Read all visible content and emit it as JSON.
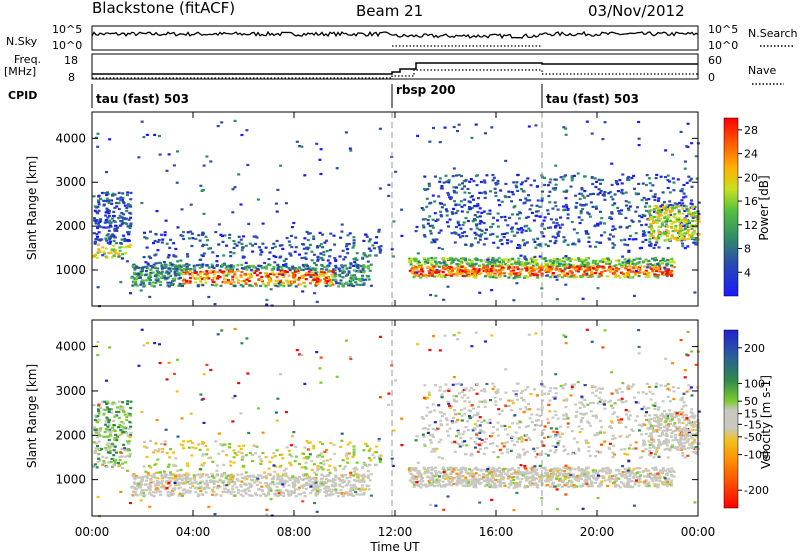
{
  "header": {
    "radar": "Blackstone (fitACF)",
    "beam": "Beam 21",
    "date": "03/Nov/2012"
  },
  "strips": {
    "noise": {
      "left_label": "N.Sky",
      "right_label": "N.Search",
      "ticks": [
        "10^5",
        "10^0"
      ]
    },
    "freq": {
      "left_label": "Freq.",
      "left_unit": "[MHz]",
      "left_ticks": [
        "18",
        "8"
      ],
      "right_label": "Nave",
      "right_ticks": [
        "60",
        "0"
      ]
    },
    "cpid": {
      "label": "CPID",
      "programs": [
        "tau (fast) 503",
        "rbsp 200",
        "tau (fast) 503"
      ],
      "switch_times_hours": [
        0,
        12,
        18
      ]
    }
  },
  "chart_data": [
    {
      "type": "heatmap",
      "name": "power",
      "xlabel": "Time UT",
      "ylabel": "Slant Range [km]",
      "x_ticks": [
        "00:00",
        "04:00",
        "08:00",
        "12:00",
        "16:00",
        "20:00",
        "00:00"
      ],
      "xlim_hours": [
        0,
        24
      ],
      "y_ticks": [
        1000,
        2000,
        3000,
        4000
      ],
      "ylim": [
        180,
        4600
      ],
      "colorbar": {
        "label": "Power [dB]",
        "ticks": [
          4,
          8,
          12,
          16,
          20,
          24,
          28
        ],
        "range": [
          0,
          30
        ],
        "colors": [
          "#1a1aff",
          "#2a4ab0",
          "#2f8a6a",
          "#55c040",
          "#c8e020",
          "#ffb000",
          "#ff5a00",
          "#ff0000"
        ]
      },
      "features": [
        {
          "desc": "main scatter band",
          "hours": [
            1.5,
            11
          ],
          "range_km": [
            600,
            1200
          ],
          "peak_db": 26
        },
        {
          "desc": "rising echo near midnight",
          "hours": [
            0,
            1.5
          ],
          "range_km": [
            1300,
            2800
          ]
        },
        {
          "desc": "post-noon band",
          "hours": [
            12.5,
            23
          ],
          "range_km": [
            850,
            1300
          ],
          "peak_db": 27
        },
        {
          "desc": "upper diffuse echoes",
          "hours": [
            13,
            24
          ],
          "range_km": [
            1500,
            3200
          ]
        }
      ]
    },
    {
      "type": "heatmap",
      "name": "velocity",
      "xlabel": "Time UT",
      "ylabel": "Slant Range [km]",
      "x_ticks": [
        "00:00",
        "04:00",
        "08:00",
        "12:00",
        "16:00",
        "20:00",
        "00:00"
      ],
      "xlim_hours": [
        0,
        24
      ],
      "y_ticks": [
        1000,
        2000,
        3000,
        4000
      ],
      "ylim": [
        180,
        4600
      ],
      "colorbar": {
        "label": "Velocity [m s-1]",
        "ticks": [
          200,
          100,
          50,
          15,
          -15,
          -50,
          -100,
          -200
        ],
        "range": [
          -250,
          250
        ],
        "colors": [
          "#2222cc",
          "#2b5aa0",
          "#2f8a4a",
          "#7ccc30",
          "#c8c8c0",
          "#f2c020",
          "#ff8c00",
          "#ff4800",
          "#ff0000"
        ]
      }
    }
  ]
}
